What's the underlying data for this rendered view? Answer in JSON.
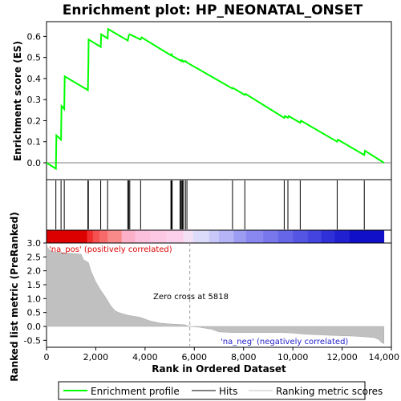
{
  "chart_data": {
    "type": "line",
    "title": "Enrichment plot: HP_NEONATAL_ONSET",
    "x_axis": {
      "label": "Rank in Ordered Dataset",
      "range": [
        0,
        14000
      ],
      "ticks": [
        0,
        2000,
        4000,
        6000,
        8000,
        10000,
        12000,
        14000
      ],
      "tick_labels": [
        "0",
        "2,000",
        "4,000",
        "6,000",
        "8,000",
        "10,000",
        "12,000",
        "14,000"
      ]
    },
    "es_panel": {
      "ylabel": "Enrichment score (ES)",
      "ylim": [
        -0.08,
        0.67
      ],
      "yticks": [
        0.0,
        0.1,
        0.2,
        0.3,
        0.4,
        0.5,
        0.6
      ],
      "ytick_labels": [
        "0.0",
        "0.1",
        "0.2",
        "0.3",
        "0.4",
        "0.5",
        "0.6"
      ],
      "grid": false,
      "series": [
        {
          "name": "Enrichment profile",
          "color": "#00ff00",
          "points": [
            [
              0,
              0.0
            ],
            [
              380,
              -0.028
            ],
            [
              400,
              0.13
            ],
            [
              590,
              0.11
            ],
            [
              610,
              0.27
            ],
            [
              720,
              0.255
            ],
            [
              740,
              0.41
            ],
            [
              1680,
              0.345
            ],
            [
              1700,
              0.47
            ],
            [
              1710,
              0.585
            ],
            [
              2200,
              0.55
            ],
            [
              2220,
              0.61
            ],
            [
              2480,
              0.59
            ],
            [
              2500,
              0.635
            ],
            [
              3300,
              0.58
            ],
            [
              3340,
              0.605
            ],
            [
              3380,
              0.61
            ],
            [
              3820,
              0.585
            ],
            [
              3860,
              0.595
            ],
            [
              5050,
              0.51
            ],
            [
              5080,
              0.515
            ],
            [
              5100,
              0.508
            ],
            [
              5420,
              0.486
            ],
            [
              5460,
              0.488
            ],
            [
              5480,
              0.482
            ],
            [
              5520,
              0.486
            ],
            [
              5560,
              0.479
            ],
            [
              5640,
              0.483
            ],
            [
              5700,
              0.476
            ],
            [
              7550,
              0.352
            ],
            [
              7570,
              0.355
            ],
            [
              8050,
              0.322
            ],
            [
              8080,
              0.327
            ],
            [
              9650,
              0.213
            ],
            [
              9680,
              0.222
            ],
            [
              9800,
              0.214
            ],
            [
              9830,
              0.222
            ],
            [
              10300,
              0.19
            ],
            [
              10330,
              0.2
            ],
            [
              11800,
              0.1
            ],
            [
              11830,
              0.11
            ],
            [
              12900,
              0.037
            ],
            [
              12930,
              0.057
            ],
            [
              13700,
              0.0
            ]
          ]
        }
      ]
    },
    "hits": [
      380,
      590,
      720,
      1680,
      1700,
      2200,
      2480,
      3300,
      3340,
      3380,
      3820,
      5050,
      5080,
      5100,
      5420,
      5460,
      5480,
      5520,
      5560,
      5640,
      5700,
      7550,
      8050,
      9650,
      9800,
      10300,
      11800,
      12900
    ],
    "heatmap_bar": {
      "colors": [
        "#dd0000",
        "#dd0000",
        "#dd0000",
        "#dd0000",
        "#dd0000",
        "#dd0000",
        "#f22c2c",
        "#f55050",
        "#f76a6a",
        "#f98a8a",
        "#fbb0c8",
        "#fcc0dc",
        "#fcc8e4",
        "#fcd0ea",
        "#f4e0f4",
        "#dcdcfa",
        "#c8c8f8",
        "#b4b4f6",
        "#9c9cf2",
        "#8888f0",
        "#7878ec",
        "#6666e8",
        "#5555e4",
        "#4444e0",
        "#3030d8",
        "#2020d0",
        "#1010c8",
        "#1010c8"
      ],
      "boundaries": [
        0,
        280,
        560,
        840,
        1120,
        1400,
        1650,
        1880,
        2150,
        2480,
        3050,
        3600,
        4200,
        4850,
        5550,
        5950,
        6600,
        7000,
        7600,
        8100,
        8800,
        9400,
        10000,
        10600,
        11150,
        11700,
        12300,
        13000,
        13700
      ]
    },
    "metric_panel": {
      "ylabel": "Ranked list metric (PreRanked)",
      "ylim": [
        -0.75,
        3.0
      ],
      "yticks": [
        -0.5,
        0.0,
        0.5,
        1.0,
        1.5,
        2.0,
        2.5,
        3.0
      ],
      "ytick_labels": [
        "-0.5",
        "0.0",
        "0.5",
        "1.0",
        "1.5",
        "2.0",
        "2.5",
        "3.0"
      ],
      "series": [
        {
          "name": "Ranking metric scores",
          "color": "#c0c0c0",
          "points": [
            [
              0,
              3.0
            ],
            [
              40,
              2.85
            ],
            [
              120,
              2.75
            ],
            [
              300,
              2.68
            ],
            [
              1400,
              2.6
            ],
            [
              1500,
              2.4
            ],
            [
              1700,
              2.3
            ],
            [
              1800,
              2.0
            ],
            [
              2000,
              1.6
            ],
            [
              2200,
              1.3
            ],
            [
              2400,
              1.05
            ],
            [
              2600,
              0.75
            ],
            [
              2800,
              0.55
            ],
            [
              3000,
              0.48
            ],
            [
              3300,
              0.4
            ],
            [
              3800,
              0.33
            ],
            [
              4200,
              0.2
            ],
            [
              4600,
              0.12
            ],
            [
              5000,
              0.09
            ],
            [
              5600,
              0.06
            ],
            [
              5818,
              0.0
            ],
            [
              6200,
              -0.03
            ],
            [
              6700,
              -0.1
            ],
            [
              7000,
              -0.2
            ],
            [
              7500,
              -0.22
            ],
            [
              9500,
              -0.22
            ],
            [
              10000,
              -0.24
            ],
            [
              10500,
              -0.28
            ],
            [
              11500,
              -0.32
            ],
            [
              12500,
              -0.35
            ],
            [
              13300,
              -0.4
            ],
            [
              13500,
              -0.48
            ],
            [
              13600,
              -0.58
            ],
            [
              13700,
              -0.62
            ]
          ]
        }
      ],
      "annotations": {
        "pos": "'na_pos' (positively correlated)",
        "neg": "'na_neg' (negatively correlated)",
        "zero_cross": "Zero cross at 5818"
      },
      "zero_cross": 5818
    },
    "legend": [
      {
        "label": "Enrichment profile",
        "color": "#00ff00",
        "kind": "line"
      },
      {
        "label": "Hits",
        "color": "#000000",
        "kind": "line"
      },
      {
        "label": "Ranking metric scores",
        "color": "#c0c0c0",
        "kind": "line"
      }
    ]
  }
}
